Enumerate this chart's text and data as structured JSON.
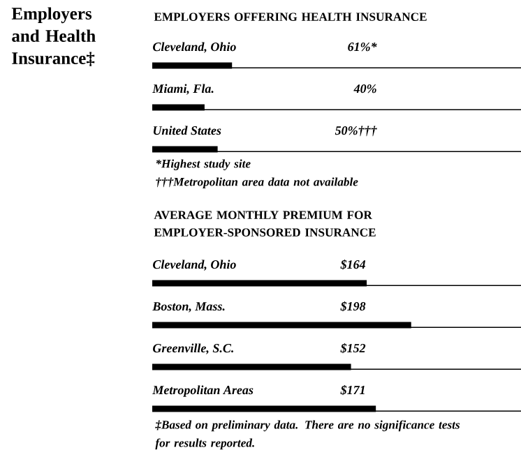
{
  "chart_data": [
    {
      "type": "other",
      "title": "Employers and Health Insurance‡"
    },
    {
      "type": "bar",
      "orientation": "horizontal",
      "title": "EMPLOYERS OFFERING HEALTH INSURANCE",
      "categories": [
        "Cleveland, Ohio",
        "Miami, Fla.",
        "United States"
      ],
      "values": [
        61,
        40,
        50
      ],
      "value_labels": [
        "61%*",
        "40%",
        "50%†††"
      ],
      "color": "#000000",
      "annotations": [
        "*Highest study site",
        "†††Metropolitan area data not available"
      ]
    },
    {
      "type": "bar",
      "orientation": "horizontal",
      "title": "AVERAGE MONTHLY PREMIUM FOR EMPLOYER-SPONSORED INSURANCE",
      "categories": [
        "Cleveland, Ohio",
        "Boston, Mass.",
        "Greenville, S.C.",
        "Metropolitan Areas"
      ],
      "values": [
        164,
        198,
        152,
        171
      ],
      "value_labels": [
        "$164",
        "$198",
        "$152",
        "$171"
      ],
      "color": "#000000",
      "annotations": [
        "‡Based on preliminary data. There are no significance tests for results reported."
      ]
    }
  ]
}
